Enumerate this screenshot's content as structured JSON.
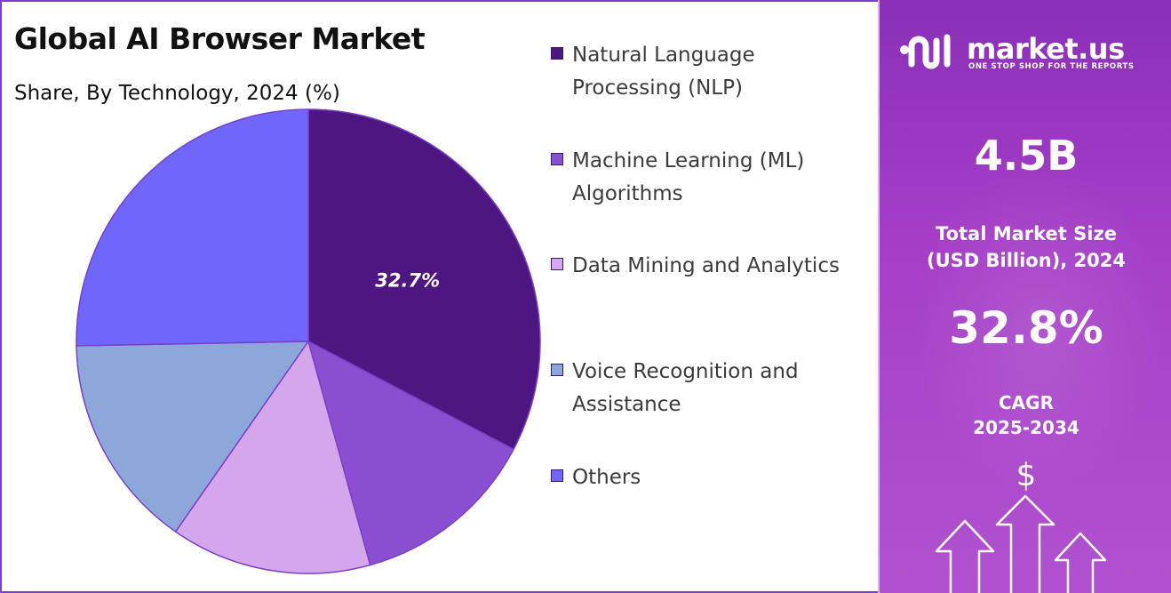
{
  "header": {
    "title": "Global AI Browser Market",
    "subtitle": "Share, By Technology, 2024 (%)"
  },
  "chart_data": {
    "type": "pie",
    "title": "Global AI Browser Market",
    "subtitle": "Share, By Technology, 2024 (%)",
    "categories": [
      "Natural Language Processing (NLP)",
      "Machine Learning (ML) Algorithms",
      "Data Mining and Analytics",
      "Voice Recognition and Assistance",
      "Others"
    ],
    "values": [
      32.7,
      13.0,
      14.0,
      15.0,
      25.3
    ],
    "colors": [
      "#4e1681",
      "#8a4fd1",
      "#d4a6ec",
      "#8da7da",
      "#7066fb"
    ],
    "data_labels": [
      "32.7%",
      "",
      "",
      "",
      ""
    ],
    "legend_position": "right"
  },
  "legend": {
    "items": [
      {
        "line1": "Natural Language",
        "line2": "Processing (NLP)"
      },
      {
        "line1": "Machine Learning (ML)",
        "line2": "Algorithms"
      },
      {
        "line1": "Data Mining and Analytics",
        "line2": ""
      },
      {
        "line1": "Voice Recognition and",
        "line2": "Assistance"
      },
      {
        "line1": "Others",
        "line2": ""
      }
    ]
  },
  "sidebar": {
    "brand_name": "market.us",
    "brand_tagline": "ONE STOP SHOP FOR THE REPORTS",
    "market_size_value": "4.5B",
    "market_size_label_line1": "Total Market Size",
    "market_size_label_line2": "(USD Billion), 2024",
    "cagr_value": "32.8%",
    "cagr_label_line1": "CAGR",
    "cagr_label_line2": "2025-2034",
    "currency_symbol": "$"
  },
  "icons": {
    "brand_logo": "market-us-logo-icon",
    "dollar": "dollar-icon",
    "growth_arrows": "growth-arrows-icon"
  }
}
